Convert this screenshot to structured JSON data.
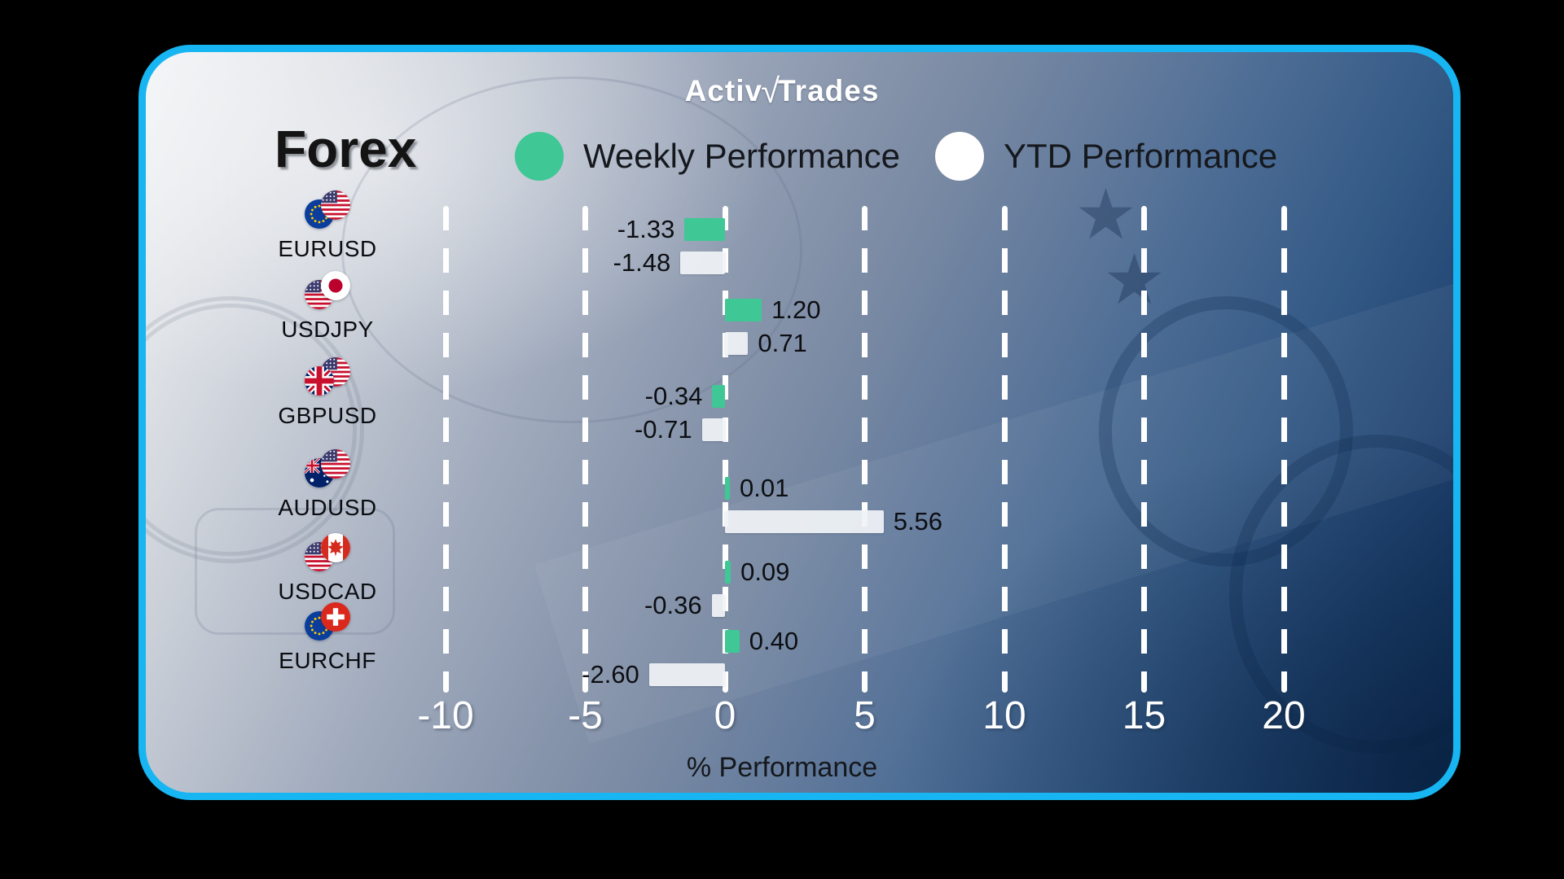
{
  "brand": {
    "logo_left": "Activ",
    "logo_slash": "√",
    "logo_right": "Trades"
  },
  "header": {
    "title": "Forex"
  },
  "legend": [
    {
      "label": "Weekly Performance",
      "color": "#3fc795"
    },
    {
      "label": "YTD Performance",
      "color": "#ffffff"
    }
  ],
  "chart_data": {
    "type": "bar",
    "orientation": "horizontal",
    "title": "Forex",
    "categories": [
      "EURUSD",
      "USDJPY",
      "GBPUSD",
      "AUDUSD",
      "USDCAD",
      "EURCHF"
    ],
    "series": [
      {
        "name": "Weekly Performance",
        "color": "#3fc795",
        "values": [
          -1.33,
          1.2,
          -0.34,
          0.01,
          0.09,
          0.4
        ]
      },
      {
        "name": "YTD Performance",
        "color": "#f2f4f6",
        "values": [
          -1.48,
          0.71,
          -0.71,
          5.56,
          -0.36,
          -2.6
        ]
      }
    ],
    "xlabel": "% Performance",
    "x_ticks": [
      -10,
      -5,
      0,
      5,
      10,
      15,
      20
    ],
    "xlim": [
      -12.5,
      23
    ],
    "grid": "dashed-vertical-white",
    "legend_position": "top"
  },
  "axis": {
    "tick_labels": [
      "-10",
      "-5",
      "0",
      "5",
      "10",
      "15",
      "20"
    ],
    "xlabel": "% Performance"
  },
  "pairs": [
    {
      "symbol": "EURUSD",
      "flags": [
        "eu",
        "us"
      ],
      "front": "right",
      "weekly": {
        "value": -1.33,
        "label": "-1.33"
      },
      "ytd": {
        "value": -1.48,
        "label": "-1.48"
      }
    },
    {
      "symbol": "USDJPY",
      "flags": [
        "us",
        "jp"
      ],
      "front": "right",
      "weekly": {
        "value": 1.2,
        "label": "1.20"
      },
      "ytd": {
        "value": 0.71,
        "label": "0.71"
      }
    },
    {
      "symbol": "GBPUSD",
      "flags": [
        "gb",
        "us"
      ],
      "front": "left",
      "weekly": {
        "value": -0.34,
        "label": "-0.34"
      },
      "ytd": {
        "value": -0.71,
        "label": "-0.71"
      }
    },
    {
      "symbol": "AUDUSD",
      "flags": [
        "au",
        "us"
      ],
      "front": "right",
      "weekly": {
        "value": 0.01,
        "label": "0.01"
      },
      "ytd": {
        "value": 5.56,
        "label": "5.56"
      }
    },
    {
      "symbol": "USDCAD",
      "flags": [
        "us",
        "ca"
      ],
      "front": "right",
      "weekly": {
        "value": 0.09,
        "label": "0.09"
      },
      "ytd": {
        "value": -0.36,
        "label": "-0.36"
      }
    },
    {
      "symbol": "EURCHF",
      "flags": [
        "eu",
        "ch"
      ],
      "front": "right",
      "weekly": {
        "value": 0.4,
        "label": "0.40"
      },
      "ytd": {
        "value": -2.6,
        "label": "-2.60"
      }
    }
  ],
  "colors": {
    "border_cyan": "#17b6f2",
    "weekly_green": "#3fc795",
    "ytd_white": "#f2f4f6",
    "background_outer": "#000000",
    "axis_text": "#ffffff",
    "label_text": "#0c0e11"
  }
}
